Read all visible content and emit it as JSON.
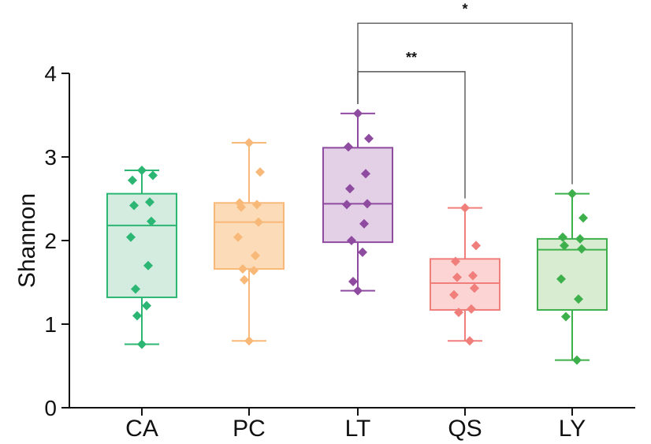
{
  "chart_data": {
    "type": "box",
    "title": "",
    "xlabel": "",
    "ylabel": "Shannon",
    "ylim": [
      0,
      4
    ],
    "yticks": [
      0,
      1,
      2,
      3,
      4
    ],
    "categories": [
      "CA",
      "PC",
      "LT",
      "QS",
      "LY"
    ],
    "series": [
      {
        "name": "CA",
        "color": "#2bb673",
        "fill": "#d4ecdf",
        "min": 0.76,
        "q1": 1.32,
        "median": 2.18,
        "q3": 2.56,
        "max": 2.84,
        "points": [
          2.84,
          2.78,
          2.72,
          2.46,
          2.42,
          2.23,
          2.04,
          1.7,
          1.42,
          1.22,
          1.1,
          0.76
        ]
      },
      {
        "name": "PC",
        "color": "#f8b878",
        "fill": "#fcdcb8",
        "min": 0.8,
        "q1": 1.66,
        "median": 2.22,
        "q3": 2.45,
        "max": 3.17,
        "points": [
          3.17,
          2.82,
          2.45,
          2.43,
          2.4,
          2.22,
          2.04,
          1.82,
          1.66,
          1.64,
          1.53,
          0.8
        ]
      },
      {
        "name": "LT",
        "color": "#8e4ba0",
        "fill": "#e3cfe6",
        "min": 1.4,
        "q1": 1.98,
        "median": 2.44,
        "q3": 3.11,
        "max": 3.52,
        "points": [
          3.52,
          3.22,
          3.12,
          2.8,
          2.62,
          2.44,
          2.43,
          2.2,
          2.0,
          1.86,
          1.51,
          1.4
        ]
      },
      {
        "name": "QS",
        "color": "#f07f7c",
        "fill": "#fcd4d3",
        "min": 0.8,
        "q1": 1.17,
        "median": 1.49,
        "q3": 1.78,
        "max": 2.39,
        "points": [
          2.39,
          1.94,
          1.75,
          1.58,
          1.56,
          1.43,
          1.35,
          1.18,
          1.14,
          0.8
        ]
      },
      {
        "name": "LY",
        "color": "#3eb04b",
        "fill": "#d8ecd2",
        "min": 0.57,
        "q1": 1.17,
        "median": 1.89,
        "q3": 2.02,
        "max": 2.56,
        "points": [
          2.56,
          2.27,
          2.04,
          2.02,
          1.94,
          1.9,
          1.54,
          1.3,
          1.09,
          0.57
        ]
      }
    ],
    "annotations": [
      {
        "from": "LT",
        "to": "LY",
        "label": "*",
        "level": 4.6
      },
      {
        "from": "LT",
        "to": "QS",
        "label": "**",
        "level": 4.02
      }
    ]
  }
}
